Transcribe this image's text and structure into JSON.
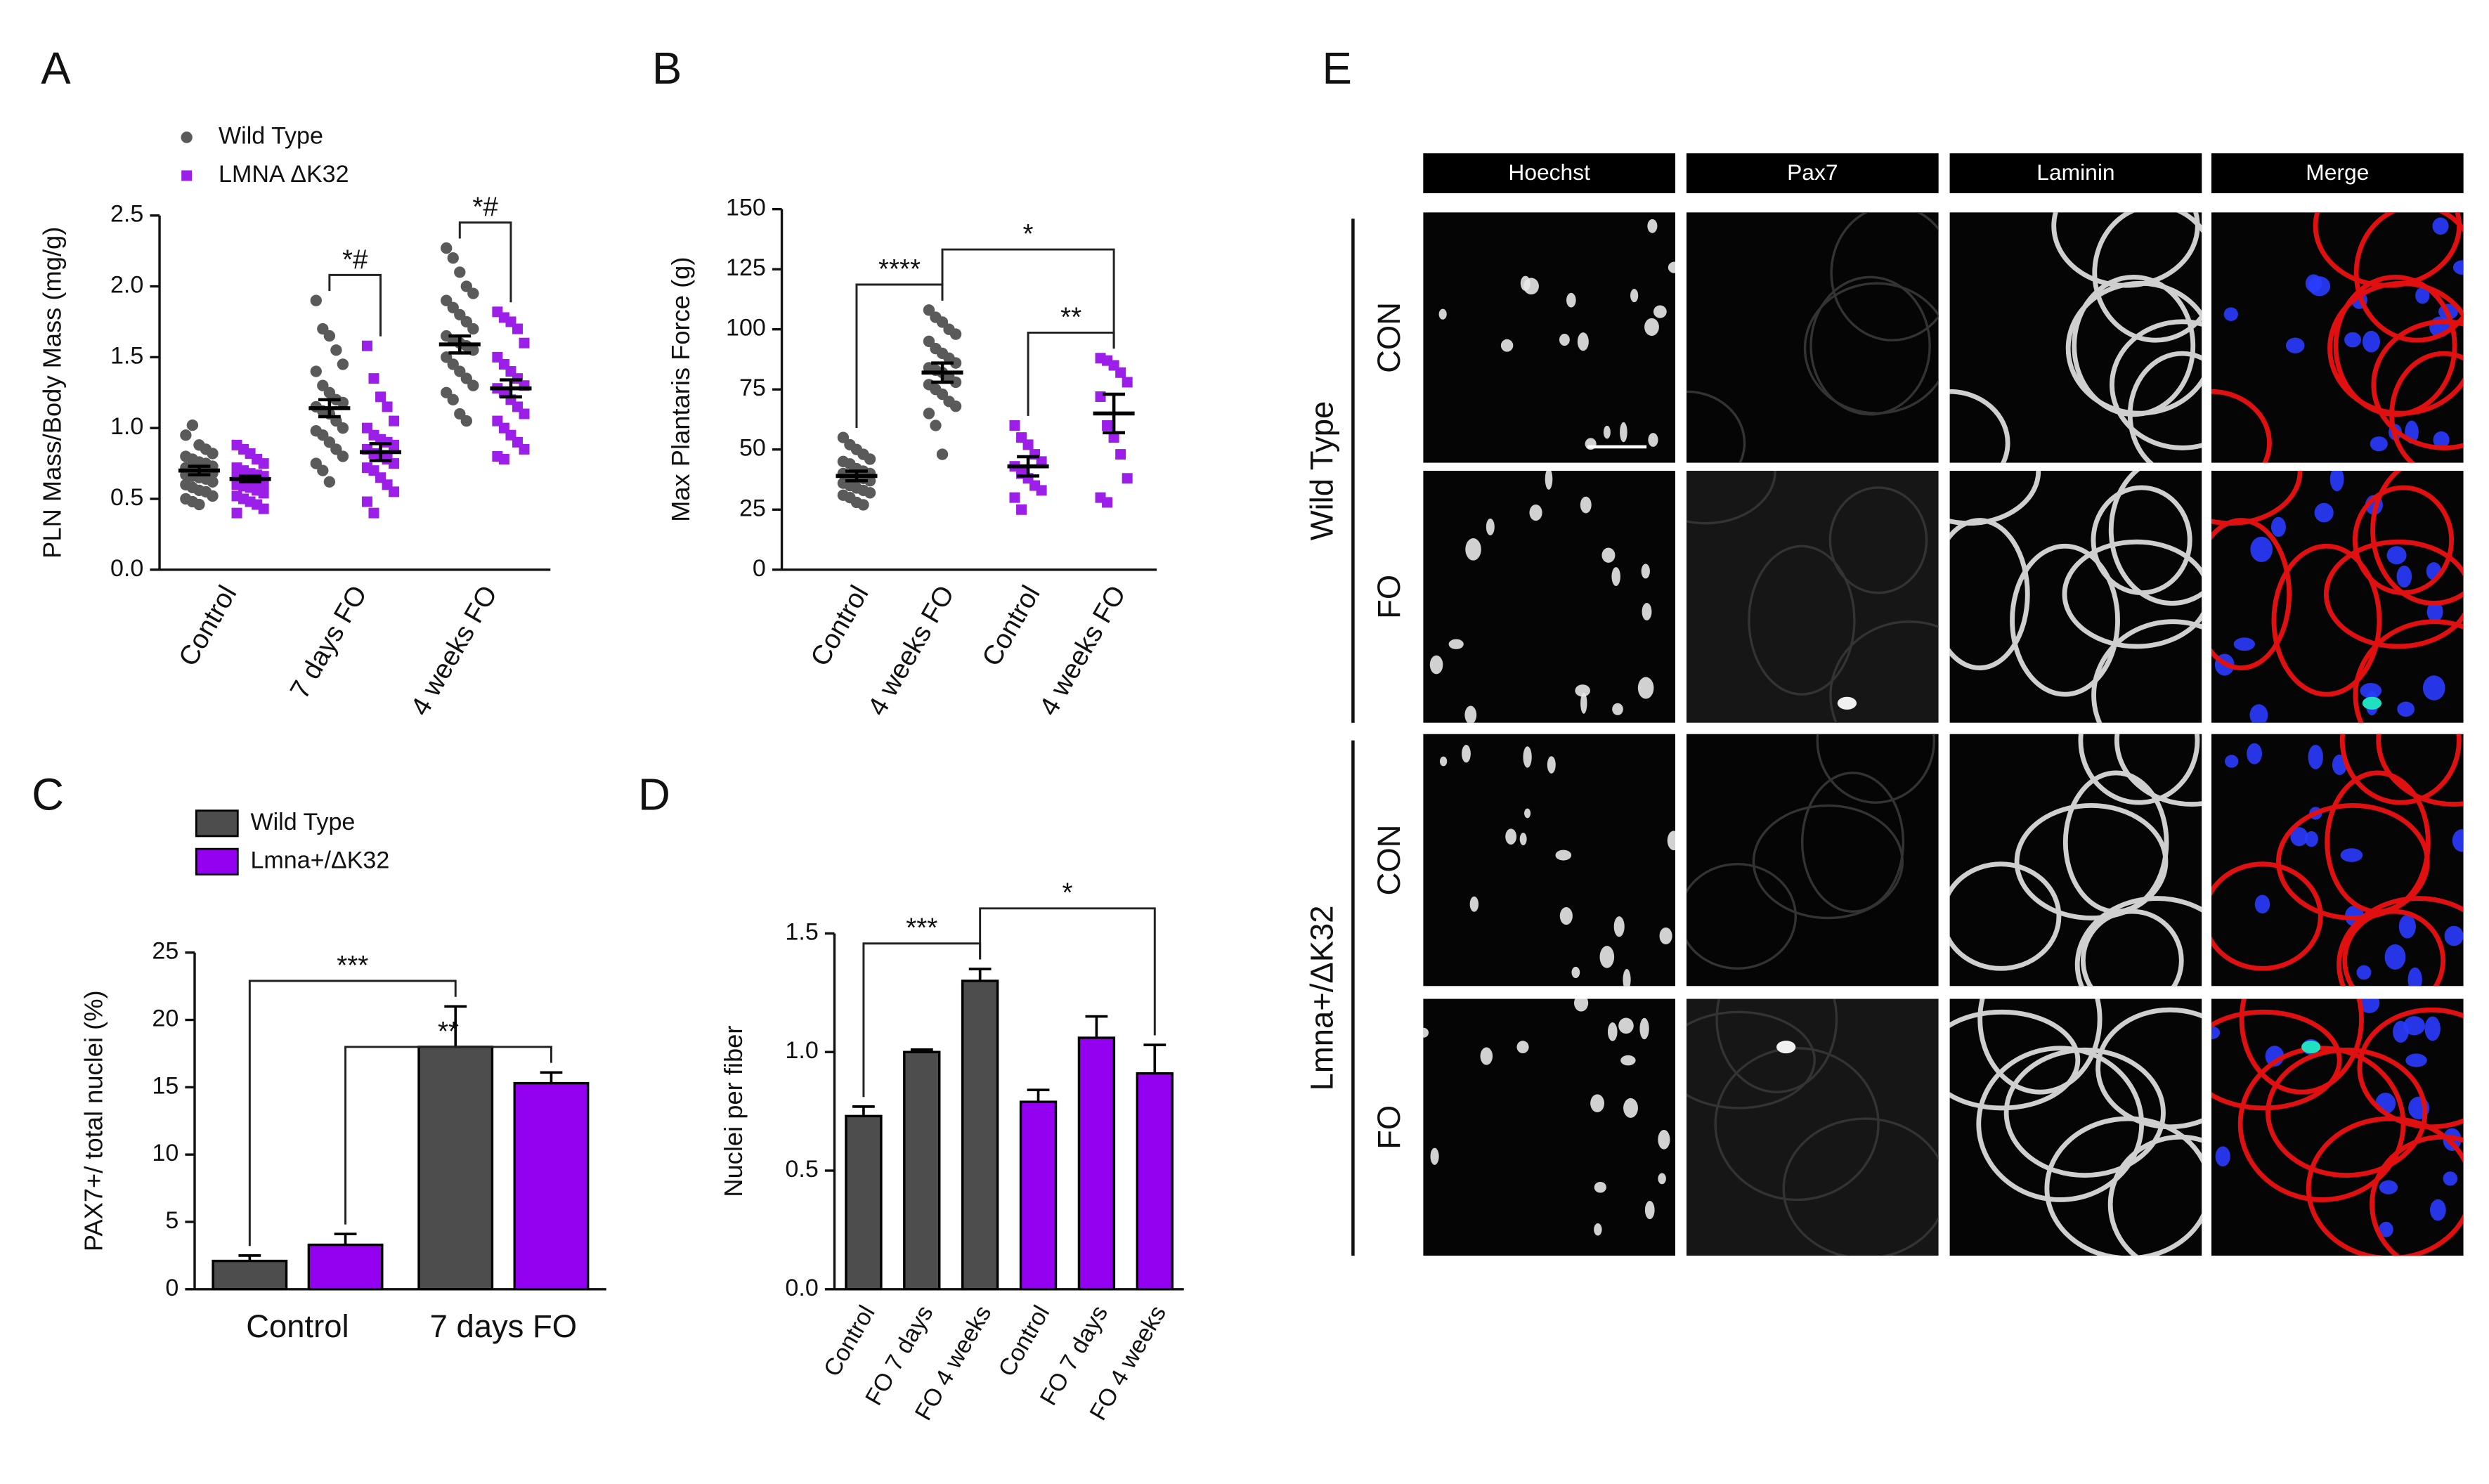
{
  "chart_data": [
    {
      "type": "strip",
      "panel": "A",
      "ylabel": "PLN Mass/Body Mass (mg/g)",
      "categories": [
        "Control",
        "7 days FO",
        "4 weeks FO"
      ],
      "ylim": [
        0,
        2.5
      ],
      "yticks": [
        {
          "value": 0,
          "label": "0.0"
        },
        0.5,
        {
          "value": 1,
          "label": "1.0"
        },
        1.5,
        {
          "value": 2,
          "label": "2.0"
        },
        2.5
      ],
      "legend": true,
      "series": [
        {
          "name": "Wild Type",
          "color": "#5a5a5a",
          "marker": "circle",
          "points": [
            [
              0.95,
              1.02,
              0.88,
              0.85,
              0.82,
              0.8,
              0.78,
              0.76,
              0.75,
              0.73,
              0.72,
              0.71,
              0.7,
              0.69,
              0.68,
              0.67,
              0.66,
              0.65,
              0.64,
              0.62,
              0.6,
              0.58,
              0.56,
              0.55,
              0.52,
              0.5,
              0.48,
              0.46
            ],
            [
              1.9,
              1.7,
              1.65,
              1.55,
              1.45,
              1.4,
              1.3,
              1.25,
              1.2,
              1.18,
              1.15,
              1.12,
              1.1,
              1.05,
              1.0,
              0.98,
              0.95,
              0.9,
              0.85,
              0.8,
              0.75,
              0.7,
              0.62
            ],
            [
              2.27,
              2.2,
              2.1,
              2.0,
              1.95,
              1.9,
              1.85,
              1.8,
              1.75,
              1.7,
              1.65,
              1.62,
              1.6,
              1.58,
              1.55,
              1.5,
              1.45,
              1.4,
              1.35,
              1.3,
              1.25,
              1.2,
              1.1,
              1.05
            ]
          ],
          "means": [
            0.7,
            1.14,
            1.59
          ],
          "sem": [
            0.03,
            0.06,
            0.06
          ]
        },
        {
          "name": "LMNA ΔK32",
          "color": "#9b1fe8",
          "marker": "square",
          "points": [
            [
              0.88,
              0.85,
              0.82,
              0.78,
              0.75,
              0.72,
              0.7,
              0.68,
              0.67,
              0.66,
              0.65,
              0.64,
              0.63,
              0.62,
              0.61,
              0.6,
              0.59,
              0.58,
              0.56,
              0.54,
              0.52,
              0.5,
              0.48,
              0.46,
              0.43,
              0.4
            ],
            [
              1.58,
              1.35,
              1.22,
              1.15,
              1.05,
              1.0,
              0.95,
              0.92,
              0.9,
              0.88,
              0.85,
              0.82,
              0.8,
              0.78,
              0.75,
              0.72,
              0.7,
              0.65,
              0.6,
              0.55,
              0.48,
              0.4
            ],
            [
              1.82,
              1.78,
              1.75,
              1.7,
              1.6,
              1.5,
              1.45,
              1.4,
              1.35,
              1.3,
              1.28,
              1.25,
              1.2,
              1.15,
              1.1,
              1.05,
              1.0,
              0.95,
              0.9,
              0.85,
              0.8,
              0.78
            ]
          ],
          "means": [
            0.64,
            0.83,
            1.28
          ],
          "sem": [
            0.02,
            0.06,
            0.06
          ]
        }
      ],
      "annotations": [
        {
          "text": "*#",
          "from": [
            0,
            1
          ],
          "to": [
            1,
            1
          ]
        },
        {
          "text": "*#",
          "from": [
            0,
            2
          ],
          "to": [
            1,
            2
          ]
        }
      ]
    },
    {
      "type": "strip",
      "panel": "B",
      "ylabel": "Max Plantaris Force (g)",
      "categories": [
        "Control",
        "4 weeks FO",
        "Control",
        "4 weeks FO"
      ],
      "ylim": [
        0,
        150
      ],
      "yticks": [
        0,
        25,
        50,
        75,
        100,
        125,
        150
      ],
      "legend": false,
      "series": [
        {
          "color": "#5a5a5a",
          "marker": "circle",
          "points": [
            [
              55,
              52,
              50,
              48,
              46,
              45,
              44,
              42,
              41,
              40,
              40,
              39,
              38,
              38,
              37,
              36,
              35,
              34,
              33,
              32,
              31,
              30,
              28,
              27
            ],
            [
              108,
              105,
              103,
              100,
              98,
              95,
              92,
              90,
              88,
              86,
              84,
              83,
              82,
              80,
              78,
              77,
              75,
              73,
              70,
              68,
              65,
              60,
              48
            ],
            null,
            null
          ],
          "means": [
            39,
            82,
            null,
            null
          ],
          "sem": [
            2,
            4,
            null,
            null
          ]
        },
        {
          "color": "#9b1fe8",
          "marker": "square",
          "points": [
            null,
            null,
            [
              60,
              55,
              52,
              48,
              45,
              43,
              40,
              38,
              35,
              33,
              30,
              25
            ],
            [
              88,
              87,
              85,
              82,
              78,
              72,
              60,
              55,
              48,
              38,
              30,
              28
            ]
          ],
          "means": [
            null,
            null,
            43,
            65
          ],
          "sem": [
            null,
            null,
            4,
            8
          ]
        }
      ],
      "annotations": [
        {
          "text": "****",
          "from": [
            0,
            0
          ],
          "to": [
            0,
            1
          ]
        },
        {
          "text": "**",
          "from": [
            1,
            2
          ],
          "to": [
            1,
            3
          ]
        },
        {
          "text": "*",
          "from": [
            0,
            1
          ],
          "to": [
            1,
            3
          ]
        }
      ]
    },
    {
      "type": "bar",
      "panel": "C",
      "ylabel": "PAX7+/ total nuclei (%)",
      "categories": [
        "Control",
        "7 days FO"
      ],
      "ylim": [
        0,
        25
      ],
      "yticks": [
        0,
        5,
        10,
        15,
        20,
        25
      ],
      "legend": true,
      "series": [
        {
          "name": "Wild Type",
          "color": "#4d4d4d",
          "values": [
            2.1,
            18.0
          ],
          "errors": [
            0.4,
            3.0
          ]
        },
        {
          "name": "Lmna+/ΔK32",
          "color": "#9400f0",
          "values": [
            3.3,
            15.3
          ],
          "errors": [
            0.8,
            0.8
          ]
        }
      ],
      "annotations": [
        {
          "text": "***",
          "from": [
            0,
            0
          ],
          "to": [
            0,
            1
          ]
        },
        {
          "text": "**",
          "from": [
            1,
            0
          ],
          "to": [
            1,
            1
          ]
        }
      ]
    },
    {
      "type": "bar",
      "panel": "D",
      "ylabel": "Nuclei per fiber",
      "categories": [
        "Control",
        "FO 7 days",
        "FO 4 weeks",
        "Control",
        "FO 7 days",
        "FO 4 weeks"
      ],
      "ylim": [
        0,
        1.5
      ],
      "yticks": [
        {
          "value": 0,
          "label": "0.0"
        },
        0.5,
        {
          "value": 1,
          "label": "1.0"
        },
        1.5
      ],
      "legend": false,
      "values": [
        0.73,
        1.0,
        1.3,
        0.79,
        1.06,
        0.91
      ],
      "errors": [
        0.04,
        0.01,
        0.05,
        0.05,
        0.09,
        0.12
      ],
      "colors": [
        "#4d4d4d",
        "#4d4d4d",
        "#4d4d4d",
        "#9400f0",
        "#9400f0",
        "#9400f0"
      ],
      "annotations": [
        {
          "text": "***",
          "from": 0,
          "to": 2
        },
        {
          "text": "*",
          "from": 2,
          "to": 5
        }
      ]
    }
  ],
  "image_panel": {
    "panel": "E",
    "columns": [
      "Hoechst",
      "Pax7",
      "Laminin",
      "Merge"
    ],
    "rows": [
      "CON",
      "FO",
      "CON",
      "FO"
    ],
    "groups": [
      "Wild Type",
      "Lmna+/ΔK32"
    ]
  }
}
